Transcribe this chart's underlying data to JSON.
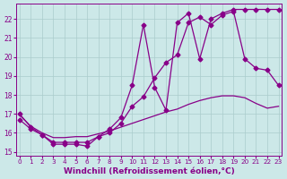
{
  "background_color": "#cce8e8",
  "grid_color": "#aacccc",
  "line_color": "#880088",
  "marker": "D",
  "markersize": 2.5,
  "linewidth": 0.9,
  "xlabel": "Windchill (Refroidissement éolien,°C)",
  "xlabel_fontsize": 6.5,
  "xlabel_fontweight": "bold",
  "xtick_fontsize": 5.2,
  "ytick_fontsize": 5.5,
  "xlim": [
    -0.3,
    23.3
  ],
  "ylim": [
    14.8,
    22.8
  ],
  "yticks": [
    15,
    16,
    17,
    18,
    19,
    20,
    21,
    22
  ],
  "xticks": [
    0,
    1,
    2,
    3,
    4,
    5,
    6,
    7,
    8,
    9,
    10,
    11,
    12,
    13,
    14,
    15,
    16,
    17,
    18,
    19,
    20,
    21,
    22,
    23
  ],
  "line1_x": [
    0,
    1,
    2,
    3,
    4,
    5,
    6,
    7,
    8,
    9,
    10,
    11,
    12,
    13,
    14,
    15,
    16,
    17,
    18,
    19,
    20,
    21,
    22,
    23
  ],
  "line1_y": [
    17.0,
    16.3,
    15.9,
    15.4,
    15.4,
    15.4,
    15.3,
    15.8,
    16.2,
    16.8,
    18.5,
    21.7,
    18.4,
    17.2,
    21.8,
    22.3,
    19.9,
    22.0,
    22.3,
    22.5,
    22.5,
    22.5,
    22.5,
    22.5
  ],
  "line2_x": [
    0,
    1,
    2,
    3,
    4,
    5,
    6,
    7,
    8,
    9,
    10,
    11,
    12,
    13,
    14,
    15,
    16,
    17,
    18,
    19,
    20,
    21,
    22,
    23
  ],
  "line2_y": [
    16.7,
    16.2,
    15.9,
    15.5,
    15.5,
    15.5,
    15.5,
    15.8,
    16.0,
    16.5,
    17.4,
    17.9,
    18.9,
    19.7,
    20.1,
    21.8,
    22.1,
    21.7,
    22.2,
    22.4,
    19.9,
    19.4,
    19.3,
    18.5
  ],
  "line3_x": [
    0,
    1,
    2,
    3,
    4,
    5,
    6,
    7,
    8,
    9,
    10,
    11,
    12,
    13,
    14,
    15,
    16,
    17,
    18,
    19,
    20,
    21,
    22,
    23
  ],
  "line3_y": [
    16.95,
    16.35,
    16.0,
    15.75,
    15.75,
    15.8,
    15.8,
    15.95,
    16.1,
    16.3,
    16.5,
    16.7,
    16.9,
    17.1,
    17.25,
    17.5,
    17.7,
    17.85,
    17.95,
    17.95,
    17.85,
    17.55,
    17.3,
    17.4
  ]
}
